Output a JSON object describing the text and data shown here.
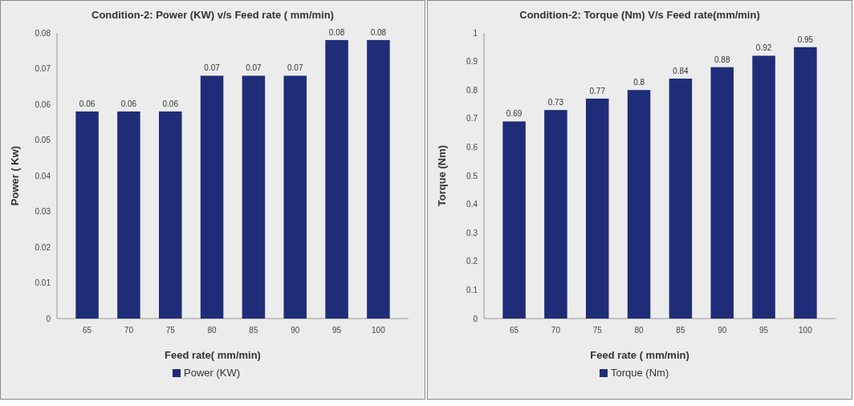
{
  "chart_data": [
    {
      "type": "bar",
      "title": "Condition-2: Power (KW) v/s Feed rate ( mm/min)",
      "xlabel": "Feed rate( mm/min)",
      "ylabel": "Power ( Kw)",
      "categories": [
        "65",
        "70",
        "75",
        "80",
        "85",
        "90",
        "95",
        "100"
      ],
      "series": [
        {
          "name": "Power (KW)",
          "color": "#1f2d78",
          "values": [
            0.058,
            0.058,
            0.058,
            0.068,
            0.068,
            0.068,
            0.078,
            0.078
          ],
          "value_labels": [
            "0.06",
            "0.06",
            "0.06",
            "0.07",
            "0.07",
            "0.07",
            "0.08",
            "0.08"
          ]
        }
      ],
      "ylim": [
        0,
        0.08
      ],
      "yticks": [
        {
          "value": 0,
          "label": "0"
        },
        {
          "value": 0.01,
          "label": "0.01"
        },
        {
          "value": 0.02,
          "label": "0.02"
        },
        {
          "value": 0.03,
          "label": "0.03"
        },
        {
          "value": 0.04,
          "label": "0.04"
        },
        {
          "value": 0.05,
          "label": "0.05"
        },
        {
          "value": 0.06,
          "label": "0.06"
        },
        {
          "value": 0.07,
          "label": "0.07"
        },
        {
          "value": 0.08,
          "label": "0.08"
        }
      ],
      "grid": false,
      "legend": "bottom"
    },
    {
      "type": "bar",
      "title": "Condition-2: Torque (Nm)  V/s Feed rate(mm/min)",
      "xlabel": "Feed rate ( mm/min)",
      "ylabel": "Torque (Nm)",
      "categories": [
        "65",
        "70",
        "75",
        "80",
        "85",
        "90",
        "95",
        "100"
      ],
      "series": [
        {
          "name": "Torque (Nm)",
          "color": "#1f2d78",
          "values": [
            0.69,
            0.73,
            0.77,
            0.8,
            0.84,
            0.88,
            0.92,
            0.95
          ]
        }
      ],
      "data_labels": true,
      "ylim": [
        0,
        1
      ],
      "yticks": [
        0,
        0.1,
        0.2,
        0.3,
        0.4,
        0.5,
        0.6,
        0.7,
        0.8,
        0.9,
        1
      ],
      "grid": false,
      "legend": "bottom"
    }
  ]
}
